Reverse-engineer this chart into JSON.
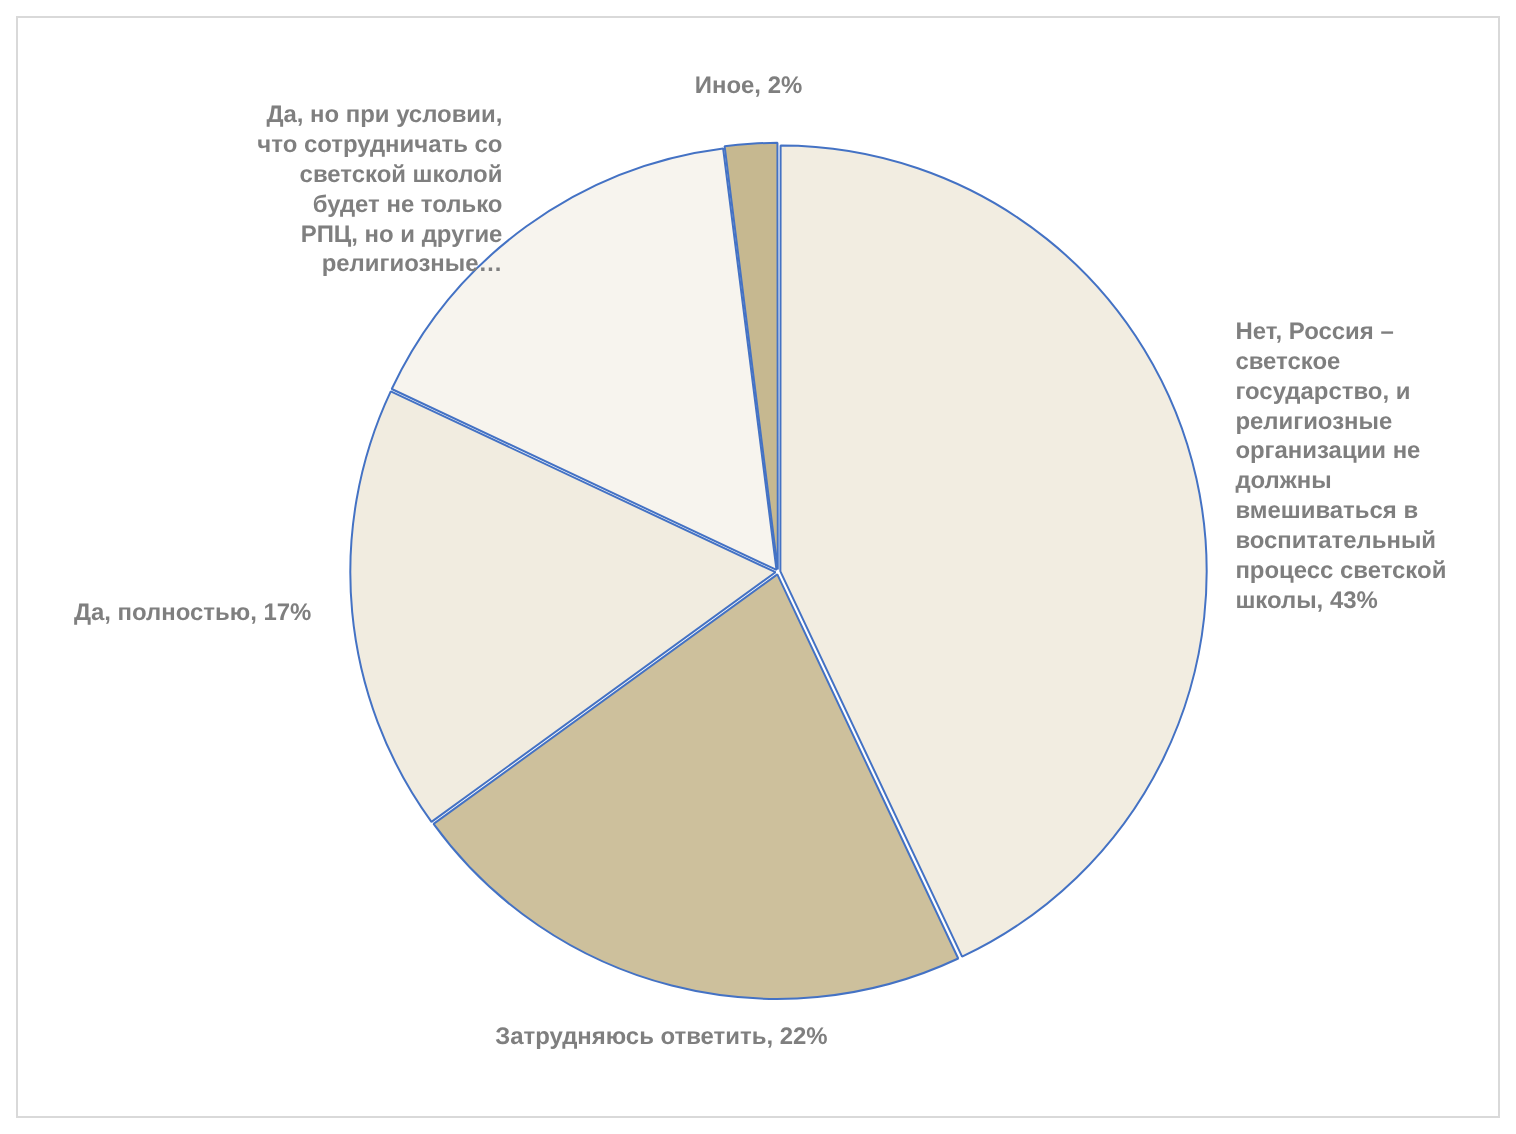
{
  "chart_data": {
    "type": "pie",
    "categories": [
      "Нет, Россия – светское государство, и религиозные организации не должны вмешиваться в воспитательный процесс светской школы, 43%",
      "Затрудняюсь ответить, 22%",
      "Да, полностью, 17%",
      "Да, но при условии, что сотрудничать со светской школой будет не только РПЦ, но и другие религиозные…",
      "Иное, 2%"
    ],
    "values": [
      43,
      22,
      17,
      16,
      2
    ],
    "colors": [
      "#f2ede1",
      "#cdc09c",
      "#f1ece0",
      "#f7f4ee",
      "#c6b890"
    ]
  }
}
